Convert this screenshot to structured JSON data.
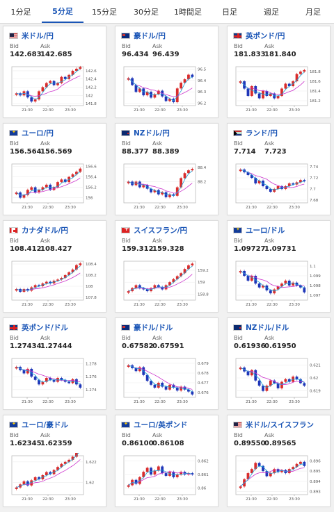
{
  "tabs": {
    "items": [
      "1分足",
      "5分足",
      "15分足",
      "30分足",
      "1時間足",
      "日足",
      "週足",
      "月足"
    ],
    "active": 1
  },
  "labels": {
    "bid": "Bid",
    "ask": "Ask"
  },
  "colors": {
    "up": "#d92c2c",
    "down": "#1f36b8",
    "ma_long": "#cc33cc",
    "ma_short": "#19a0d6",
    "title": "#1a55b6"
  },
  "chart_data": [
    {
      "type": "candlestick",
      "title": "米ドル/円",
      "flag": "us",
      "bid": "142.683",
      "ask": "142.685",
      "x_ticks": [
        "21:30",
        "22:30",
        "23:30"
      ],
      "y_ticks": [
        "142.6",
        "142.4",
        "142.2",
        "142",
        "141.8"
      ],
      "ylim": [
        141.75,
        142.7
      ],
      "closes": [
        142.05,
        142.0,
        142.1,
        141.95,
        141.85,
        141.9,
        142.1,
        142.2,
        142.3,
        142.35,
        142.25,
        142.3,
        142.45,
        142.4,
        142.5,
        142.6,
        142.65,
        142.69
      ]
    },
    {
      "type": "candlestick",
      "title": "豪ドル/円",
      "flag": "au",
      "bid": "96.434",
      "ask": "96.439",
      "x_ticks": [
        "21:30",
        "22:30",
        "23:30"
      ],
      "y_ticks": [
        "96.5",
        "96.4",
        "96.3",
        "96.2"
      ],
      "ylim": [
        96.18,
        96.52
      ],
      "closes": [
        96.42,
        96.36,
        96.3,
        96.33,
        96.27,
        96.3,
        96.25,
        96.28,
        96.31,
        96.26,
        96.22,
        96.24,
        96.21,
        96.33,
        96.38,
        96.41,
        96.45,
        96.43
      ]
    },
    {
      "type": "candlestick",
      "title": "英ポンド/円",
      "flag": "gb",
      "bid": "181.833",
      "ask": "181.840",
      "x_ticks": [
        "21:30",
        "22:30",
        "23:30"
      ],
      "y_ticks": [
        "181.8",
        "181.6",
        "181.4",
        "181.2"
      ],
      "ylim": [
        181.1,
        181.9
      ],
      "closes": [
        181.6,
        181.45,
        181.3,
        181.5,
        181.35,
        181.25,
        181.4,
        181.3,
        181.35,
        181.25,
        181.3,
        181.45,
        181.55,
        181.5,
        181.6,
        181.75,
        181.8,
        181.83
      ]
    },
    {
      "type": "candlestick",
      "title": "ユーロ/円",
      "flag": "eu",
      "bid": "156.564",
      "ask": "156.569",
      "x_ticks": [
        "21:30",
        "22:30",
        "23:30"
      ],
      "y_ticks": [
        "156.6",
        "156.4",
        "156.2",
        "156"
      ],
      "ylim": [
        155.9,
        156.65
      ],
      "closes": [
        156.1,
        156.0,
        156.05,
        156.15,
        156.2,
        156.1,
        156.15,
        156.2,
        156.25,
        156.15,
        156.2,
        156.3,
        156.35,
        156.3,
        156.4,
        156.45,
        156.5,
        156.56
      ]
    },
    {
      "type": "candlestick",
      "title": "NZドル/円",
      "flag": "nz",
      "bid": "88.377",
      "ask": "88.389",
      "x_ticks": [
        "21:30",
        "22:30",
        "23:30"
      ],
      "y_ticks": [
        "88.4",
        "88.2"
      ],
      "ylim": [
        87.9,
        88.45
      ],
      "closes": [
        88.2,
        88.15,
        88.2,
        88.12,
        88.15,
        88.1,
        88.05,
        88.08,
        88.02,
        88.05,
        87.98,
        88.02,
        88.0,
        88.12,
        88.25,
        88.32,
        88.36,
        88.38
      ]
    },
    {
      "type": "candlestick",
      "title": "ランド/円",
      "flag": "za",
      "bid": "7.714",
      "ask": "7.723",
      "x_ticks": [
        "21:30",
        "22:30",
        "23:30"
      ],
      "y_ticks": [
        "7.74",
        "7.72",
        "7.7",
        "7.68"
      ],
      "ylim": [
        7.675,
        7.745
      ],
      "closes": [
        7.735,
        7.73,
        7.725,
        7.72,
        7.71,
        7.715,
        7.705,
        7.7,
        7.695,
        7.7,
        7.705,
        7.7,
        7.705,
        7.71,
        7.708,
        7.712,
        7.716,
        7.714
      ]
    },
    {
      "type": "candlestick",
      "title": "カナダドル/円",
      "flag": "ca",
      "bid": "108.412",
      "ask": "108.427",
      "x_ticks": [
        "21:30",
        "22:30",
        "23:30"
      ],
      "y_ticks": [
        "108.4",
        "108.2",
        "108",
        "107.8"
      ],
      "ylim": [
        107.75,
        108.45
      ],
      "closes": [
        107.95,
        107.9,
        107.95,
        107.92,
        107.98,
        108.02,
        108.0,
        108.05,
        108.08,
        108.05,
        108.1,
        108.12,
        108.15,
        108.2,
        108.25,
        108.3,
        108.38,
        108.41
      ]
    },
    {
      "type": "candlestick",
      "title": "スイスフラン/円",
      "flag": "ch",
      "bid": "159.312",
      "ask": "159.328",
      "x_ticks": [
        "21:30",
        "22:30",
        "23:30"
      ],
      "y_ticks": [
        "159.2",
        "159",
        "158.8"
      ],
      "ylim": [
        158.7,
        159.35
      ],
      "closes": [
        158.85,
        158.9,
        158.95,
        158.9,
        158.88,
        158.85,
        158.9,
        158.95,
        158.92,
        158.88,
        158.95,
        159.0,
        159.05,
        159.1,
        159.15,
        159.22,
        159.28,
        159.31
      ]
    },
    {
      "type": "candlestick",
      "title": "ユーロ/ドル",
      "flag": "eu",
      "bid": "1.09727",
      "ask": "1.09731",
      "x_ticks": [
        "21:30",
        "22:30",
        "23:30"
      ],
      "y_ticks": [
        "1.1",
        "1.099",
        "1.098",
        "1.097"
      ],
      "ylim": [
        1.0965,
        1.1005
      ],
      "closes": [
        1.0995,
        1.099,
        1.0985,
        1.099,
        1.0982,
        1.0978,
        1.098,
        1.0975,
        1.0972,
        1.0976,
        1.0979,
        1.0982,
        1.0985,
        1.098,
        1.0983,
        1.098,
        1.0978,
        1.0973
      ]
    },
    {
      "type": "candlestick",
      "title": "英ポンド/ドル",
      "flag": "gb",
      "bid": "1.27434",
      "ask": "1.27444",
      "x_ticks": [
        "21:30",
        "22:30",
        "23:30"
      ],
      "y_ticks": [
        "1.278",
        "1.276",
        "1.274"
      ],
      "ylim": [
        1.2728,
        1.2788
      ],
      "closes": [
        1.2775,
        1.277,
        1.2765,
        1.2772,
        1.276,
        1.2755,
        1.2748,
        1.2752,
        1.2758,
        1.2755,
        1.2752,
        1.2758,
        1.2755,
        1.2752,
        1.275,
        1.2756,
        1.2748,
        1.2743
      ]
    },
    {
      "type": "candlestick",
      "title": "豪ドル/ドル",
      "flag": "au",
      "bid": "0.67582",
      "ask": "0.67591",
      "x_ticks": [
        "21:30",
        "22:30",
        "23:30"
      ],
      "y_ticks": [
        "0.679",
        "0.678",
        "0.677",
        "0.676"
      ],
      "ylim": [
        0.6755,
        0.6795
      ],
      "closes": [
        0.6788,
        0.6785,
        0.6782,
        0.6786,
        0.6778,
        0.6772,
        0.6768,
        0.6765,
        0.677,
        0.6766,
        0.6763,
        0.6768,
        0.6765,
        0.6762,
        0.6766,
        0.6763,
        0.6761,
        0.6758
      ]
    },
    {
      "type": "candlestick",
      "title": "NZドル/ドル",
      "flag": "nz",
      "bid": "0.61936",
      "ask": "0.61950",
      "x_ticks": [
        "21:30",
        "22:30",
        "23:30"
      ],
      "y_ticks": [
        "0.621",
        "0.62",
        "0.619"
      ],
      "ylim": [
        0.6185,
        0.6215
      ],
      "closes": [
        0.6208,
        0.6205,
        0.6202,
        0.6206,
        0.6198,
        0.6194,
        0.619,
        0.6194,
        0.6198,
        0.6196,
        0.6192,
        0.6197,
        0.6199,
        0.6197,
        0.6201,
        0.6199,
        0.6196,
        0.6194
      ]
    },
    {
      "type": "candlestick",
      "title": "ユーロ/豪ドル",
      "flag": "eu",
      "bid": "1.62345",
      "ask": "1.62359",
      "x_ticks": [
        "21:30",
        "22:30",
        "23:30"
      ],
      "y_ticks": [
        "1.622",
        "1.62"
      ],
      "ylim": [
        1.6188,
        1.6226
      ],
      "closes": [
        1.6195,
        1.6198,
        1.6201,
        1.6197,
        1.6202,
        1.6205,
        1.6203,
        1.6207,
        1.621,
        1.6208,
        1.6212,
        1.6215,
        1.6218,
        1.622,
        1.6222,
        1.6225,
        1.6232,
        1.6234
      ]
    },
    {
      "type": "candlestick",
      "title": "ユーロ/英ポンド",
      "flag": "eu",
      "bid": "0.86100",
      "ask": "0.86108",
      "x_ticks": [
        "21:30",
        "22:30",
        "23:30"
      ],
      "y_ticks": [
        "0.862",
        "0.861",
        "0.86"
      ],
      "ylim": [
        0.8595,
        0.8624
      ],
      "closes": [
        0.8602,
        0.8606,
        0.8603,
        0.8608,
        0.8612,
        0.8615,
        0.861,
        0.8613,
        0.8616,
        0.8611,
        0.8609,
        0.8612,
        0.8608,
        0.861,
        0.8612,
        0.861,
        0.8611,
        0.861
      ]
    },
    {
      "type": "candlestick",
      "title": "米ドル/スイスフラン",
      "flag": "us",
      "bid": "0.89550",
      "ask": "0.89565",
      "x_ticks": [
        "21:30",
        "22:30",
        "23:30"
      ],
      "y_ticks": [
        "0.896",
        "0.895",
        "0.894",
        "0.893"
      ],
      "ylim": [
        0.8927,
        0.8965
      ],
      "closes": [
        0.8935,
        0.8942,
        0.8948,
        0.8952,
        0.8958,
        0.8955,
        0.895,
        0.8945,
        0.8948,
        0.8952,
        0.8949,
        0.8951,
        0.8948,
        0.8952,
        0.8954,
        0.8957,
        0.8959,
        0.8955
      ]
    }
  ]
}
